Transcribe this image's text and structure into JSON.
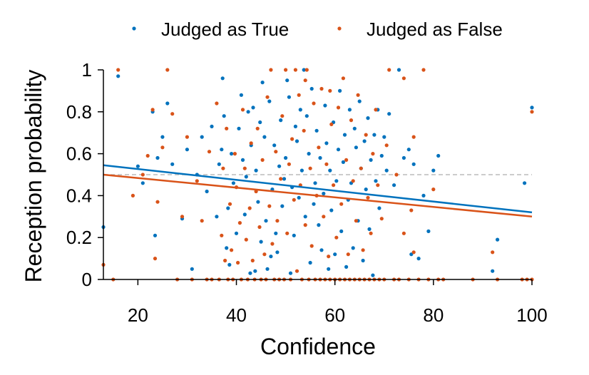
{
  "chart_data": {
    "type": "scatter",
    "xlabel": "Confidence",
    "ylabel": "Reception probability",
    "xlim": [
      13,
      100
    ],
    "ylim": [
      0,
      1
    ],
    "xticks": [
      20,
      40,
      60,
      80,
      100
    ],
    "yticks": [
      0,
      0.2,
      0.4,
      0.6,
      0.8,
      1
    ],
    "ytick_labels": [
      "0",
      "0.2",
      "0.4",
      "0.6",
      "0.8",
      "1"
    ],
    "legend_position": "top",
    "reference_line": {
      "y": 0.5,
      "style": "dashed",
      "color": "#bbbbbb"
    },
    "series": [
      {
        "name": "Judged as True",
        "color": "#0072bd",
        "fit": {
          "x": [
            13,
            100
          ],
          "y": [
            0.545,
            0.32
          ]
        },
        "points": [
          [
            13,
            0.25
          ],
          [
            16,
            0.97
          ],
          [
            20,
            0.54
          ],
          [
            21,
            0.46
          ],
          [
            23,
            0.8
          ],
          [
            23.5,
            0.21
          ],
          [
            24,
            0.58
          ],
          [
            25,
            0.68
          ],
          [
            26,
            0.84
          ],
          [
            27,
            0.55
          ],
          [
            29,
            0.29
          ],
          [
            30,
            0.62
          ],
          [
            31,
            0.05
          ],
          [
            32,
            0.5
          ],
          [
            33,
            0.68
          ],
          [
            34,
            0.42
          ],
          [
            35,
            0.73
          ],
          [
            36,
            0.3
          ],
          [
            36.5,
            0.55
          ],
          [
            37,
            0.62
          ],
          [
            37.2,
            0.96
          ],
          [
            37.5,
            0.78
          ],
          [
            38,
            0.15
          ],
          [
            38.3,
            0.34
          ],
          [
            38.6,
            0.07
          ],
          [
            39,
            0.6
          ],
          [
            39.4,
            0.46
          ],
          [
            40,
            0.22
          ],
          [
            40.5,
            0.72
          ],
          [
            41,
            0.88
          ],
          [
            41.3,
            0.57
          ],
          [
            41.7,
            0.31
          ],
          [
            42,
            0.49
          ],
          [
            42.4,
            0.8
          ],
          [
            42.8,
            0.03
          ],
          [
            43,
            0.64
          ],
          [
            43.4,
            0.82
          ],
          [
            43.8,
            0.04
          ],
          [
            44,
            0.52
          ],
          [
            44.4,
            0.37
          ],
          [
            44.8,
            0.75
          ],
          [
            45,
            0.18
          ],
          [
            45.3,
            0.94
          ],
          [
            45.7,
            0.68
          ],
          [
            46,
            0.28
          ],
          [
            46.3,
            0.05
          ],
          [
            46.7,
            0.85
          ],
          [
            47,
            0.11
          ],
          [
            47.3,
            0.43
          ],
          [
            47.7,
            0.64
          ],
          [
            48,
            0.22
          ],
          [
            48.3,
            0.13
          ],
          [
            48.7,
            0.54
          ],
          [
            49,
            0.76
          ],
          [
            49.3,
            0.35
          ],
          [
            49.7,
            0.48
          ],
          [
            50,
            0.58
          ],
          [
            50.3,
            0.95
          ],
          [
            50.7,
            0.87
          ],
          [
            51,
            0.03
          ],
          [
            51.3,
            0.44
          ],
          [
            51.7,
            0.21
          ],
          [
            52,
            0.73
          ],
          [
            52.3,
            0.66
          ],
          [
            52.7,
            0.39
          ],
          [
            53,
            0.81
          ],
          [
            53.3,
            0.52
          ],
          [
            53.7,
            1.0
          ],
          [
            54,
            0.3
          ],
          [
            54.3,
            0.78
          ],
          [
            54.7,
            0.6
          ],
          [
            55,
            0.08
          ],
          [
            55.3,
            0.91
          ],
          [
            55.7,
            0.36
          ],
          [
            56,
            0.46
          ],
          [
            56.3,
            0.71
          ],
          [
            56.7,
            0.26
          ],
          [
            57,
            0.58
          ],
          [
            57.3,
            0.14
          ],
          [
            57.7,
            0.41
          ],
          [
            58,
            0.83
          ],
          [
            58.3,
            0.65
          ],
          [
            58.7,
            0.05
          ],
          [
            59,
            0.52
          ],
          [
            59.3,
            0.33
          ],
          [
            59.7,
            0.75
          ],
          [
            60,
            0.12
          ],
          [
            60.3,
            0.47
          ],
          [
            60.7,
            0.62
          ],
          [
            61,
            0.9
          ],
          [
            61.3,
            0.23
          ],
          [
            61.7,
            0.56
          ],
          [
            62,
            0.69
          ],
          [
            62.3,
            0.06
          ],
          [
            62.7,
            0.38
          ],
          [
            63,
            0.81
          ],
          [
            63.3,
            0.46
          ],
          [
            63.7,
            0.15
          ],
          [
            64,
            0.72
          ],
          [
            64.3,
            0.63
          ],
          [
            64.7,
            0.28
          ],
          [
            65,
            0.85
          ],
          [
            65.3,
            0.53
          ],
          [
            65.7,
            0.09
          ],
          [
            66,
            0.66
          ],
          [
            66.3,
            0.43
          ],
          [
            66.7,
            0.77
          ],
          [
            67,
            0.24
          ],
          [
            67.3,
            0.57
          ],
          [
            67.7,
            0.02
          ],
          [
            68,
            0.69
          ],
          [
            68.3,
            0.47
          ],
          [
            68.7,
            0.81
          ],
          [
            69,
            0.34
          ],
          [
            69.5,
            0.59
          ],
          [
            70,
            0.68
          ],
          [
            70.5,
            0.52
          ],
          [
            71,
            0.79
          ],
          [
            72,
            0.45
          ],
          [
            73,
            1.0
          ],
          [
            74,
            0.58
          ],
          [
            75,
            0.62
          ],
          [
            75.5,
            0.12
          ],
          [
            76,
            0.55
          ],
          [
            77,
            0.1
          ],
          [
            78,
            0.4
          ],
          [
            79,
            0.23
          ],
          [
            80,
            0.52
          ],
          [
            81,
            0.59
          ],
          [
            93,
            0.19
          ],
          [
            92,
            0.04
          ],
          [
            98.5,
            0.46
          ],
          [
            100,
            0.82
          ]
        ]
      },
      {
        "name": "Judged as False",
        "color": "#d95319",
        "fit": {
          "x": [
            13,
            100
          ],
          "y": [
            0.5,
            0.3
          ]
        },
        "points": [
          [
            13,
            0.07
          ],
          [
            16,
            1.0
          ],
          [
            15,
            0.0
          ],
          [
            19,
            0.4
          ],
          [
            21,
            0.5
          ],
          [
            22,
            0.59
          ],
          [
            23,
            0.81
          ],
          [
            23.5,
            0.1
          ],
          [
            24,
            0.37
          ],
          [
            25,
            0.63
          ],
          [
            26,
            1.0
          ],
          [
            27,
            0.79
          ],
          [
            28,
            0.0
          ],
          [
            29,
            0.3
          ],
          [
            30,
            0.68
          ],
          [
            31,
            0.0
          ],
          [
            32,
            0.47
          ],
          [
            33,
            0.28
          ],
          [
            34,
            0.0
          ],
          [
            34.5,
            0.61
          ],
          [
            35,
            0.0
          ],
          [
            36,
            0.84
          ],
          [
            36.5,
            0.0
          ],
          [
            37,
            0.21
          ],
          [
            37.3,
            0.53
          ],
          [
            37.7,
            0.09
          ],
          [
            38,
            0.72
          ],
          [
            38.3,
            0.0
          ],
          [
            38.7,
            0.36
          ],
          [
            39,
            0.14
          ],
          [
            39.3,
            0.0
          ],
          [
            39.7,
            0.6
          ],
          [
            40,
            0.44
          ],
          [
            40.3,
            0.08
          ],
          [
            40.7,
            0.27
          ],
          [
            41,
            0.0
          ],
          [
            41.3,
            0.81
          ],
          [
            41.7,
            0.53
          ],
          [
            42,
            0.19
          ],
          [
            42.3,
            0.0
          ],
          [
            42.7,
            0.34
          ],
          [
            43,
            0.65
          ],
          [
            43.3,
            0.09
          ],
          [
            43.7,
            0.0
          ],
          [
            44,
            0.42
          ],
          [
            44.3,
            0.72
          ],
          [
            44.7,
            0.25
          ],
          [
            45,
            0.0
          ],
          [
            45.3,
            0.57
          ],
          [
            45.7,
            0.12
          ],
          [
            46,
            0.0
          ],
          [
            46.3,
            0.87
          ],
          [
            46.7,
            0.35
          ],
          [
            47,
            1.0
          ],
          [
            47.3,
            0.17
          ],
          [
            47.7,
            0.0
          ],
          [
            48,
            0.61
          ],
          [
            48.3,
            0.28
          ],
          [
            48.7,
            0.0
          ],
          [
            49,
            0.48
          ],
          [
            49.3,
            0.78
          ],
          [
            49.7,
            0.0
          ],
          [
            50,
            1.0
          ],
          [
            50.3,
            0.22
          ],
          [
            50.7,
            0.55
          ],
          [
            51,
            0.0
          ],
          [
            51.3,
            0.67
          ],
          [
            51.7,
            0.38
          ],
          [
            52,
            1.0
          ],
          [
            52.3,
            0.04
          ],
          [
            52.7,
            0.88
          ],
          [
            53,
            0.45
          ],
          [
            53.3,
            0.0
          ],
          [
            53.7,
            0.71
          ],
          [
            54,
            0.26
          ],
          [
            54.3,
            1.0
          ],
          [
            54.7,
            0.0
          ],
          [
            55,
            0.53
          ],
          [
            55.3,
            0.16
          ],
          [
            55.7,
            0.84
          ],
          [
            56,
            0.0
          ],
          [
            56.3,
            0.4
          ],
          [
            56.7,
            0.63
          ],
          [
            57,
            0.0
          ],
          [
            57.3,
            0.91
          ],
          [
            57.7,
            0.3
          ],
          [
            58,
            0.0
          ],
          [
            58.3,
            0.55
          ],
          [
            58.7,
            0.11
          ],
          [
            59,
            0.0
          ],
          [
            59.3,
            0.74
          ],
          [
            59.7,
            0.45
          ],
          [
            60,
            0.0
          ],
          [
            60.3,
            0.2
          ],
          [
            60.7,
            0.82
          ],
          [
            61,
            0.0
          ],
          [
            61.3,
            0.36
          ],
          [
            61.7,
            0.96
          ],
          [
            62,
            0.0
          ],
          [
            62.3,
            0.57
          ],
          [
            62.7,
            0.12
          ],
          [
            63,
            0.0
          ],
          [
            63.3,
            0.76
          ],
          [
            63.7,
            0.47
          ],
          [
            64,
            0.0
          ],
          [
            64.3,
            0.28
          ],
          [
            64.7,
            0.88
          ],
          [
            65,
            0.0
          ],
          [
            65.3,
            0.53
          ],
          [
            65.7,
            0.14
          ],
          [
            66,
            0.0
          ],
          [
            66.3,
            0.69
          ],
          [
            66.7,
            0.39
          ],
          [
            67,
            0.0
          ],
          [
            67.3,
            0.22
          ],
          [
            67.7,
            0.6
          ],
          [
            68,
            0.0
          ],
          [
            68.3,
            0.81
          ],
          [
            68.7,
            0.45
          ],
          [
            69,
            0.0
          ],
          [
            69.5,
            0.29
          ],
          [
            70,
            0.0
          ],
          [
            70.5,
            0.64
          ],
          [
            71,
            1.0
          ],
          [
            72,
            0.0
          ],
          [
            72.5,
            0.5
          ],
          [
            73,
            0.0
          ],
          [
            74,
            0.96
          ],
          [
            75,
            0.0
          ],
          [
            75.5,
            0.33
          ],
          [
            76,
            0.68
          ],
          [
            77,
            0.0
          ],
          [
            78,
            1.0
          ],
          [
            79,
            0.0
          ],
          [
            80,
            0.43
          ],
          [
            81,
            0.0
          ],
          [
            82,
            0.0
          ],
          [
            88,
            0.0
          ],
          [
            93,
            0.0
          ],
          [
            92,
            0.13
          ],
          [
            98,
            0.0
          ],
          [
            99,
            0.0
          ],
          [
            100,
            0.0
          ],
          [
            100,
            0.8
          ],
          [
            76,
            0.13
          ],
          [
            74,
            0.22
          ],
          [
            59,
            0.9
          ],
          [
            54,
            0.95
          ]
        ]
      }
    ]
  }
}
